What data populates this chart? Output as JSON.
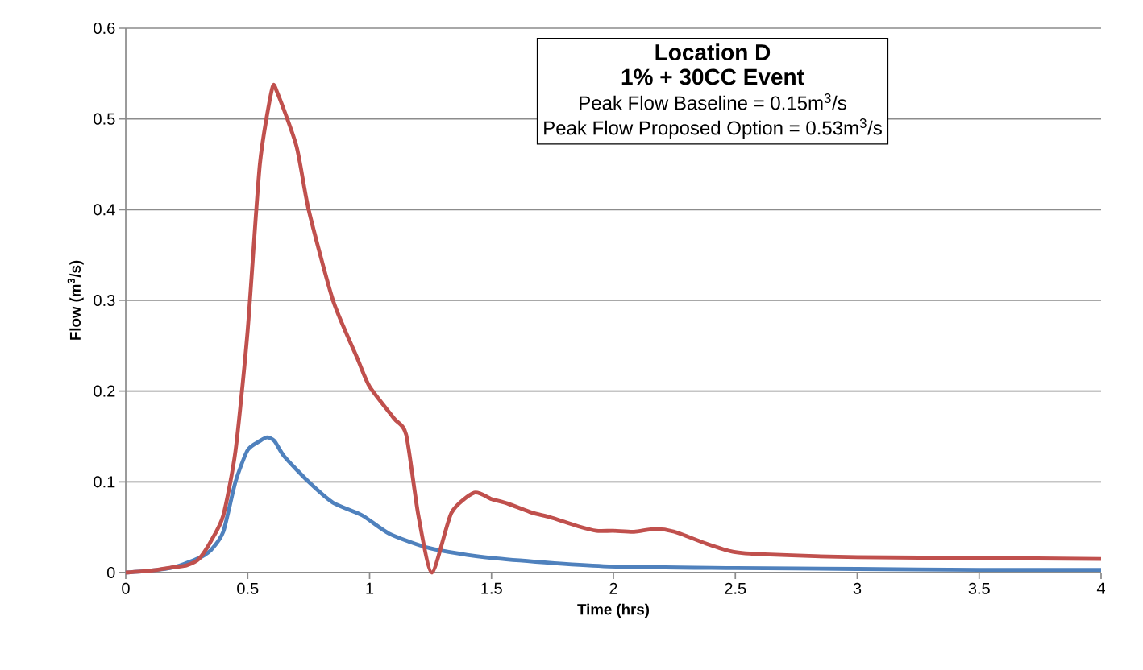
{
  "chart_data": {
    "type": "line",
    "xlabel": "Time (hrs)",
    "ylabel": "Flow (m$^{3}$/s)",
    "annotations": [
      "Location D",
      "1% + 30CC Event",
      "Peak Flow Baseline = 0.15m$^{3}$/s",
      "Peak Flow Proposed Option = 0.53m$^{3}$/s"
    ],
    "series": [
      {
        "color": "#4f81bd",
        "x": [
          0,
          0.1,
          0.2,
          0.3,
          0.35,
          0.4,
          0.45,
          0.5,
          0.55,
          0.58,
          0.61,
          0.65,
          0.75,
          0.85,
          0.97,
          1.08,
          1.246,
          1.5,
          1.96,
          2.5,
          3,
          3.5,
          4
        ],
        "values": [
          0,
          0.002,
          0.006,
          0.016,
          0.025,
          0.045,
          0.1,
          0.135,
          0.145,
          0.149,
          0.145,
          0.128,
          0.1,
          0.077,
          0.063,
          0.043,
          0.027,
          0.016,
          0.007,
          0.005,
          0.004,
          0.003,
          0.003
        ]
      },
      {
        "color": "#c0504d",
        "x": [
          0,
          0.1,
          0.2,
          0.25,
          0.3,
          0.35,
          0.4,
          0.45,
          0.5,
          0.55,
          0.6,
          0.62,
          0.7,
          0.75,
          0.85,
          0.95,
          1.0,
          1.1,
          1.15,
          1.2,
          1.256,
          1.336,
          1.43,
          1.5,
          1.567,
          1.666,
          1.74,
          1.855,
          1.93,
          2.0,
          2.085,
          2.17,
          2.25,
          2.38,
          2.49,
          2.62,
          3,
          3.5,
          4
        ],
        "values": [
          0,
          0.002,
          0.006,
          0.008,
          0.015,
          0.035,
          0.063,
          0.134,
          0.267,
          0.45,
          0.533,
          0.53,
          0.47,
          0.4,
          0.3,
          0.236,
          0.205,
          0.17,
          0.152,
          0.063,
          0,
          0.066,
          0.088,
          0.081,
          0.076,
          0.066,
          0.061,
          0.051,
          0.046,
          0.046,
          0.045,
          0.048,
          0.045,
          0.032,
          0.023,
          0.02,
          0.017,
          0.016,
          0.015
        ]
      }
    ],
    "xlim": [
      0,
      4
    ],
    "xticks": [
      0,
      0.5,
      1,
      1.5,
      2,
      2.5,
      3,
      3.5,
      4
    ],
    "ylim": [
      0,
      0.6
    ],
    "yticks": [
      0,
      0.1,
      0.2,
      0.3,
      0.4,
      0.5,
      0.6
    ],
    "grid": "y",
    "marker": "none",
    "line_style": "solid"
  }
}
